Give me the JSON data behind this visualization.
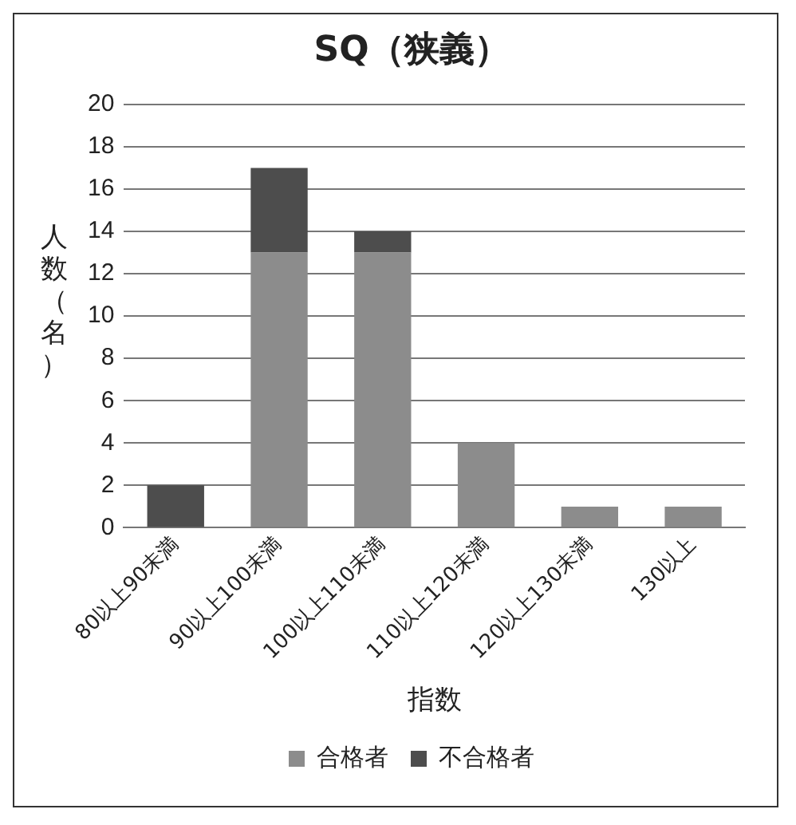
{
  "chart_data": {
    "type": "bar",
    "title": "SQ（狭義）",
    "xlabel": "指数",
    "ylabel": "人数（名）",
    "categories": [
      "80以上90未満",
      "90以上100未満",
      "100以上110未満",
      "110以上120未満",
      "120以上130未満",
      "130以上"
    ],
    "stacked": true,
    "series": [
      {
        "name": "合格者",
        "color": "#8c8c8c",
        "values": [
          0,
          13,
          13,
          4,
          1,
          1
        ]
      },
      {
        "name": "不合格者",
        "color": "#4d4d4d",
        "values": [
          2,
          4,
          1,
          0,
          0,
          0
        ]
      }
    ],
    "ylim": [
      0,
      20
    ],
    "yticks": [
      0,
      2,
      4,
      6,
      8,
      10,
      12,
      14,
      16,
      18,
      20
    ],
    "grid": "y",
    "legend": "bottom"
  }
}
